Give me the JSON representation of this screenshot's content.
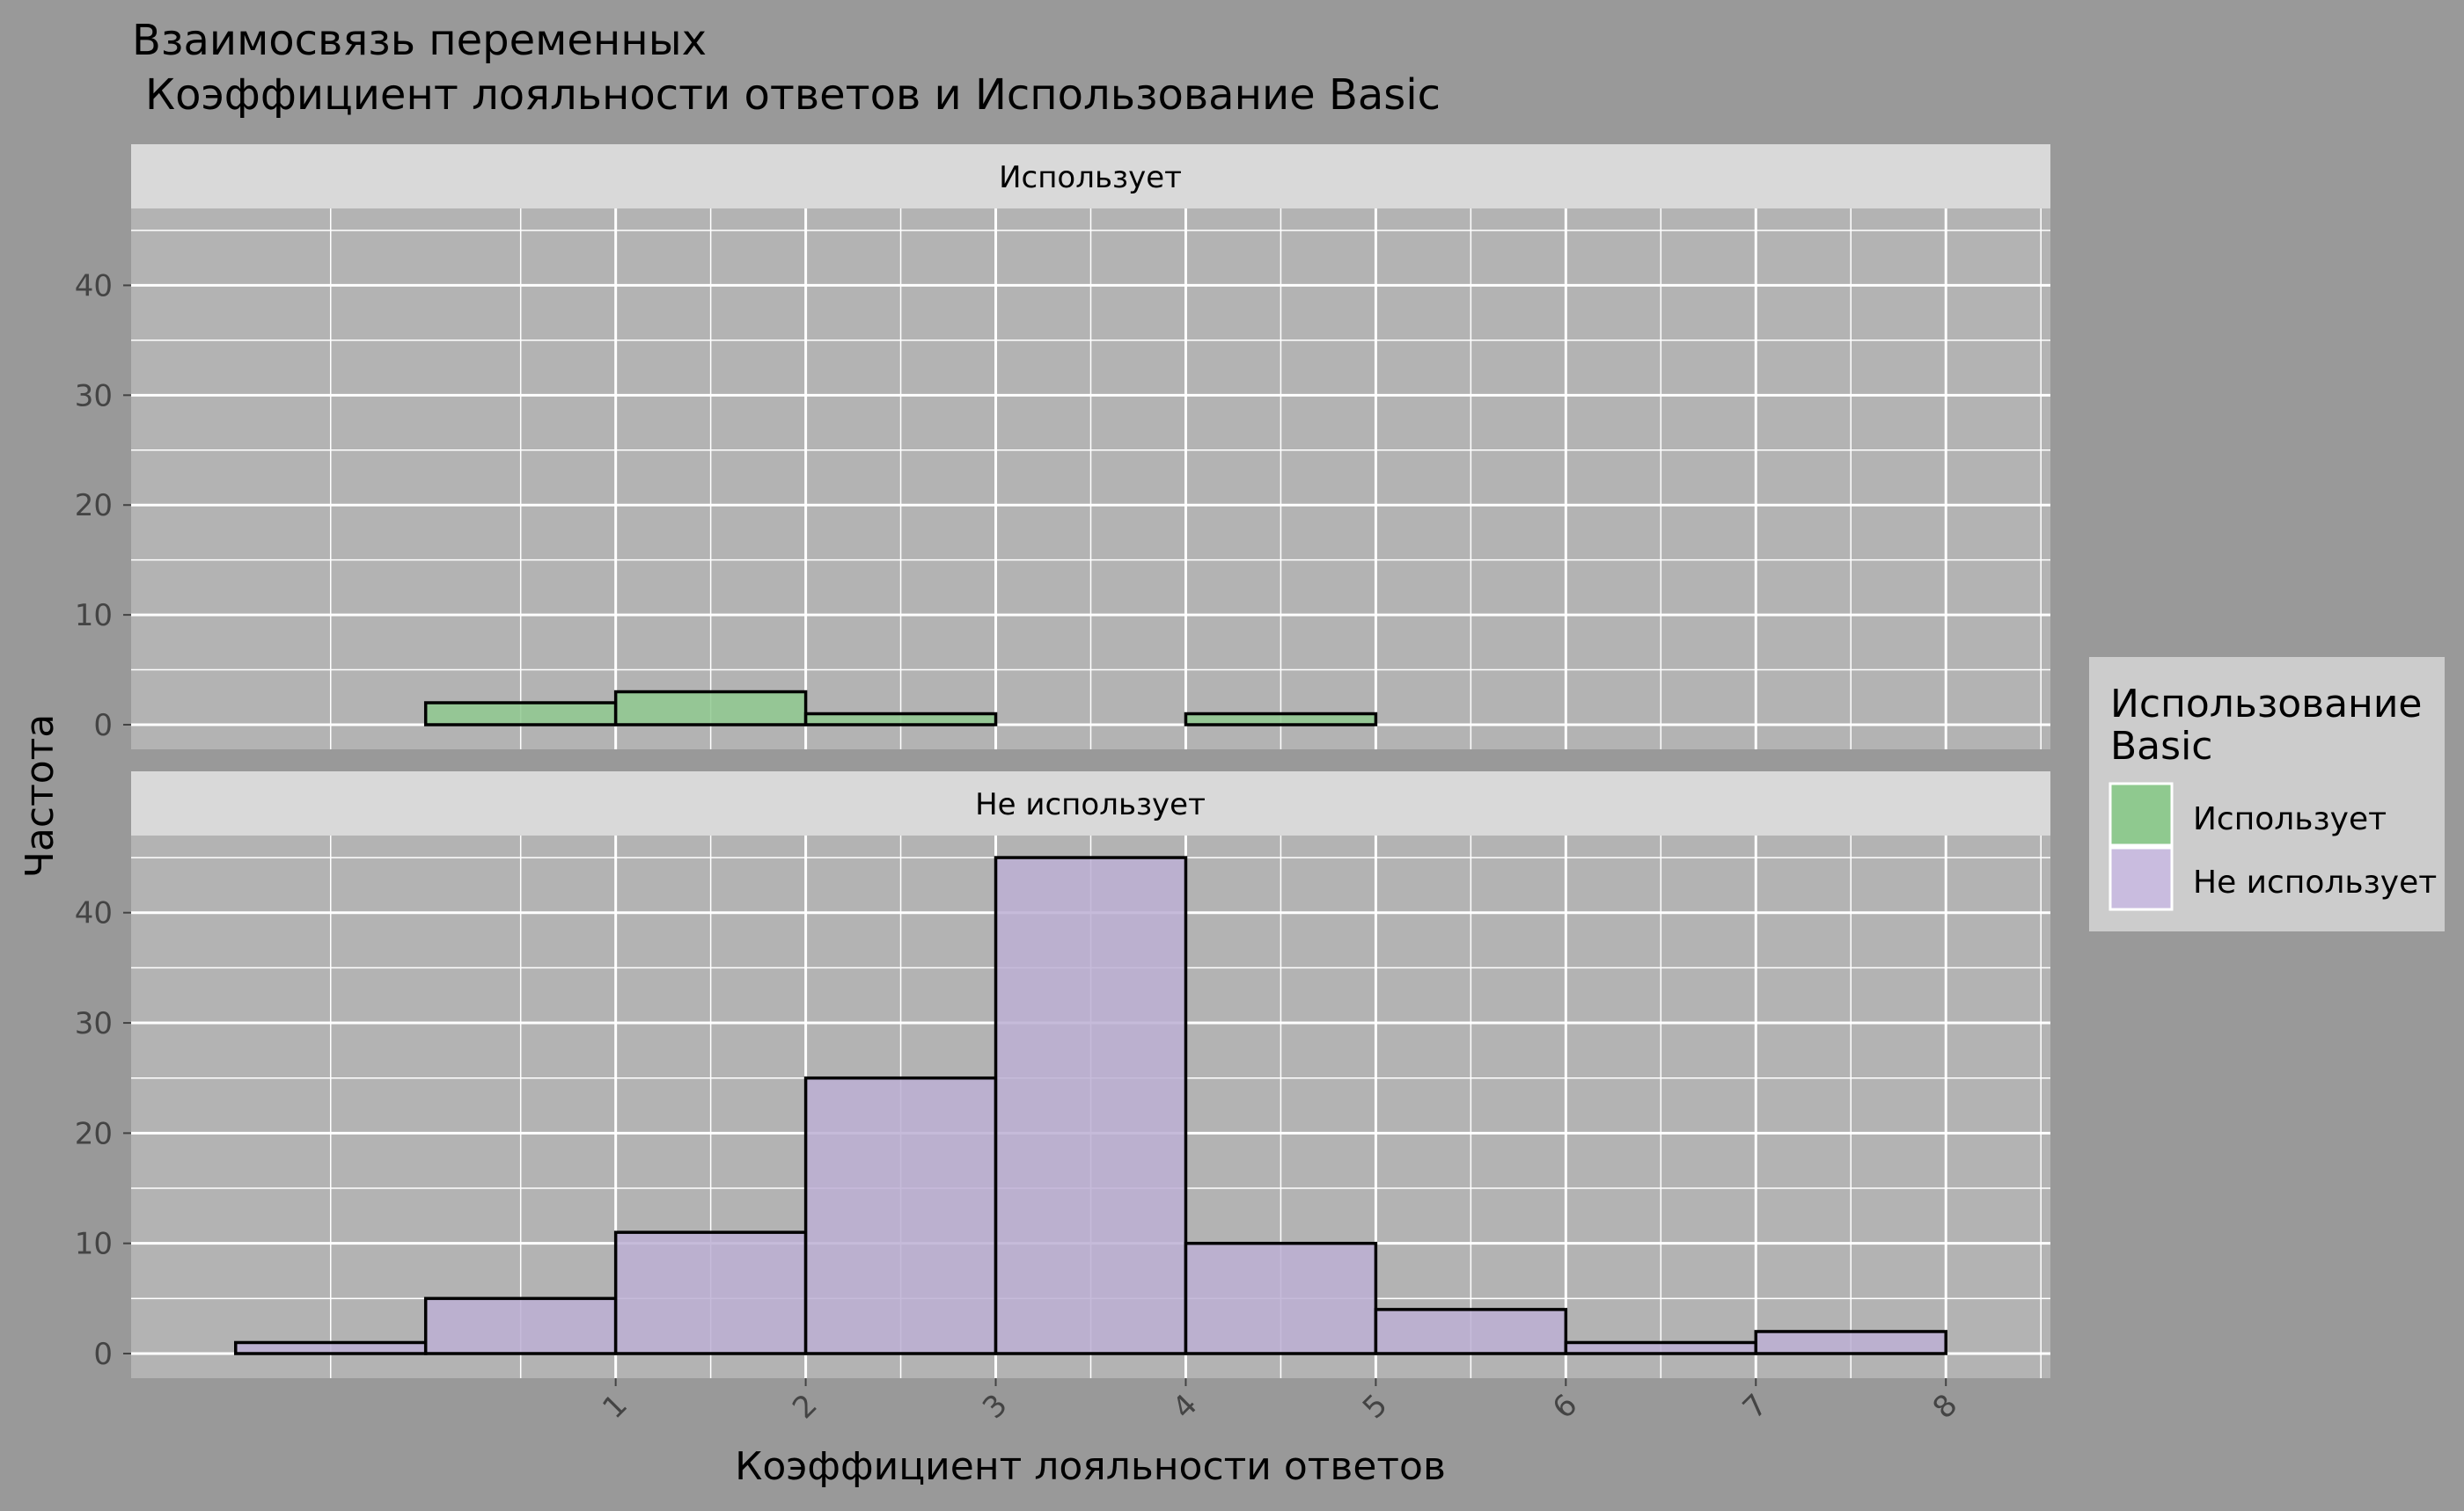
{
  "chart_data": {
    "type": "bar",
    "title": "Взаимосвязь переменных",
    "subtitle": "Коэффициент лояльности ответов и Использование Basic",
    "xlabel": "Коэффициент лояльности ответов",
    "ylabel": "Частота",
    "x_ticks": [
      "1",
      "2",
      "3",
      "4",
      "5",
      "6",
      "7",
      "8"
    ],
    "y_ticks": [
      "0",
      "10",
      "20",
      "30",
      "40"
    ],
    "ylim": [
      0,
      47
    ],
    "xlim": [
      -1.55,
      8.55
    ],
    "bin_width": 1,
    "grid": true,
    "legend": {
      "title": "Использование Basic",
      "position": "right",
      "entries": [
        "Использует",
        "Не использует"
      ]
    },
    "colors": {
      "Использует": "#8fc98f",
      "Не использует": "#bcafd3",
      "outline": "#000000",
      "panel_bg": "#b3b3b3",
      "strip_bg": "#d9d9d9",
      "grid": "#ffffff",
      "plot_bg": "#999999"
    },
    "series": [
      {
        "name": "Использует",
        "bin_centers": [
          -0.5,
          0.5,
          1.5,
          2.5,
          3.5,
          4.5,
          5.5,
          6.5,
          7.5
        ],
        "values": [
          0,
          2,
          3,
          1,
          0,
          1,
          0,
          0,
          0
        ]
      },
      {
        "name": "Не использует",
        "bin_centers": [
          -0.5,
          0.5,
          1.5,
          2.5,
          3.5,
          4.5,
          5.5,
          6.5,
          7.5
        ],
        "values": [
          1,
          5,
          11,
          25,
          45,
          10,
          4,
          1,
          2
        ]
      }
    ],
    "facets": [
      "Использует",
      "Не использует"
    ]
  }
}
